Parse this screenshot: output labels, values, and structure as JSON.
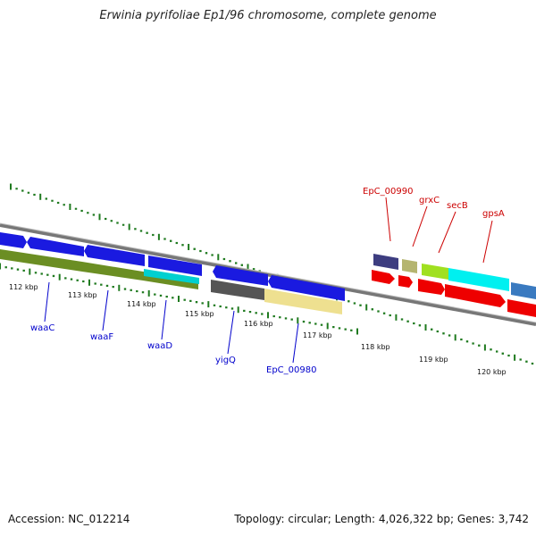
{
  "title": "Erwinia pyrifoliae Ep1/96 chromosome, complete genome",
  "footer": {
    "accession": "Accession: NC_012214",
    "summary": "Topology: circular; Length: 4,026,322 bp; Genes: 3,742"
  },
  "colors": {
    "backbone": "#888888",
    "tick": "#1f7a1f",
    "forward_label": "#0000cc",
    "reverse_label": "#cc0000"
  },
  "axis": {
    "ticks": [
      "112 kbp",
      "113 kbp",
      "114 kbp",
      "115 kbp",
      "116 kbp",
      "117 kbp",
      "118 kbp",
      "119 kbp",
      "120 kbp"
    ]
  },
  "genes_bottom": [
    {
      "name": "waaC"
    },
    {
      "name": "waaF"
    },
    {
      "name": "waaD"
    },
    {
      "name": "yigQ"
    },
    {
      "name": "EpC_00980"
    }
  ],
  "genes_top": [
    {
      "name": "EpC_00990"
    },
    {
      "name": "grxC"
    },
    {
      "name": "secB"
    },
    {
      "name": "gpsA"
    }
  ]
}
